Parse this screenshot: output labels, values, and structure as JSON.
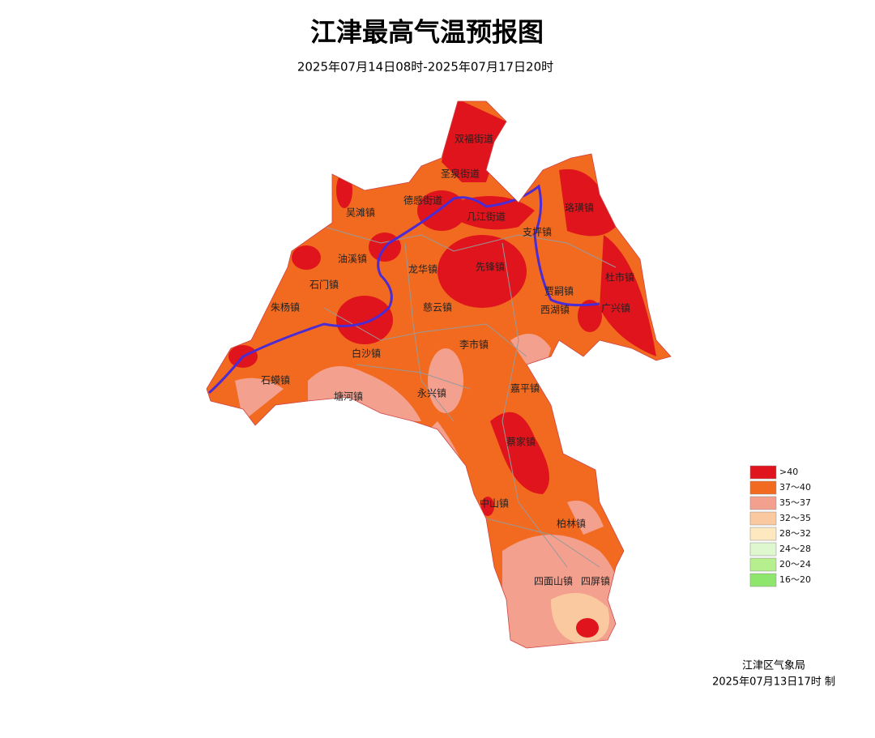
{
  "title": "江津最高气温预报图",
  "subtitle": "2025年07月14日08时-2025年07月17日20时",
  "legend": [
    {
      "label": ">40",
      "color": "#e0141c"
    },
    {
      "label": "37～40",
      "color": "#f26a1f"
    },
    {
      "label": "35～37",
      "color": "#f3a08f"
    },
    {
      "label": "32～35",
      "color": "#fbc9a0"
    },
    {
      "label": "28～32",
      "color": "#fde8c0"
    },
    {
      "label": "24～28",
      "color": "#dff7cf"
    },
    {
      "label": "20～24",
      "color": "#b6ef8e"
    },
    {
      "label": "16～20",
      "color": "#8fe66d"
    }
  ],
  "towns": [
    "双福街道",
    "圣泉街道",
    "德感街道",
    "几江街道",
    "支坪镇",
    "珞璜镇",
    "吴滩镇",
    "油溪镇",
    "龙华镇",
    "先锋镇",
    "石门镇",
    "慈云镇",
    "贾嗣镇",
    "西湖镇",
    "杜市镇",
    "广兴镇",
    "朱杨镇",
    "白沙镇",
    "李市镇",
    "石蟆镇",
    "塘河镇",
    "永兴镇",
    "嘉平镇",
    "蔡家镇",
    "中山镇",
    "柏林镇",
    "四面山镇",
    "四屏镇"
  ],
  "footer": {
    "agency": "江津区气象局",
    "issued": "2025年07月13日17时 制"
  }
}
